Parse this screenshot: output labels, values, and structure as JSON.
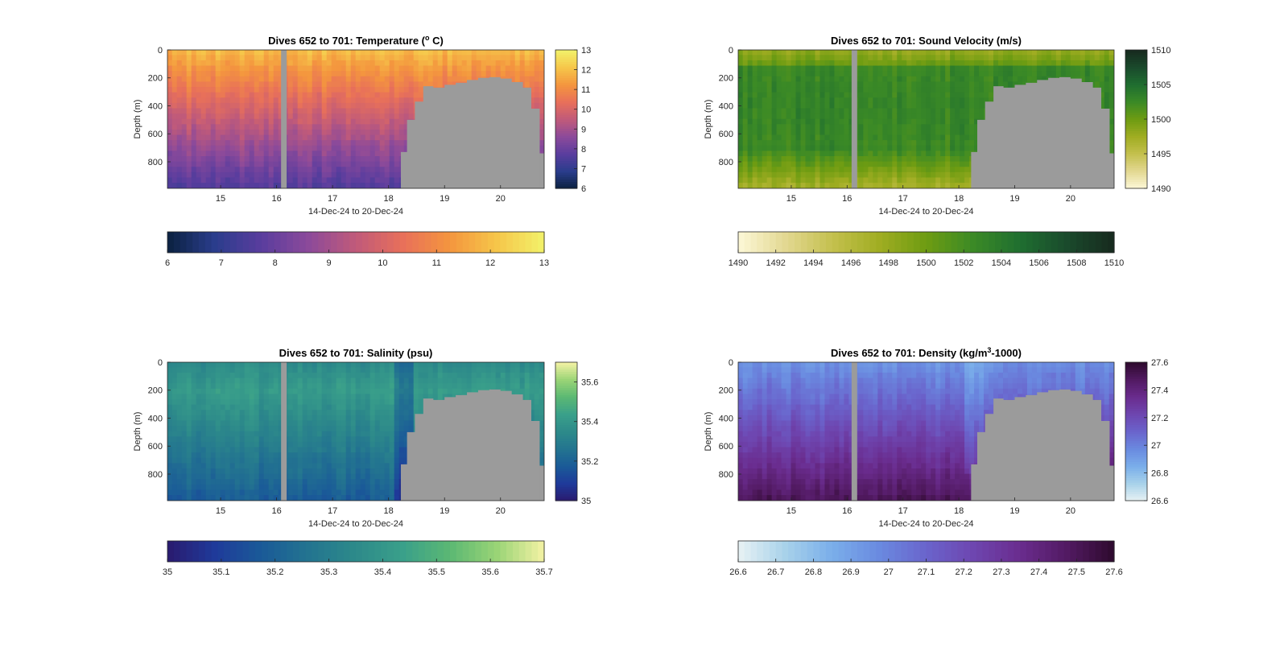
{
  "figure": {
    "panels": [
      {
        "id": "temperature",
        "title_prefix": "Dives 652 to 701: Temperature (",
        "title_sup": "o",
        "title_suffix": " C)",
        "colormap": [
          "#0b2140",
          "#2a3d8c",
          "#5a3d9e",
          "#8c4a9a",
          "#c05a7a",
          "#e8705a",
          "#f4963e",
          "#f6c64a",
          "#f2f26a"
        ]
      },
      {
        "id": "sound-velocity",
        "title_prefix": "Dives 652 to 701: Sound Velocity (m/s)",
        "title_sup": "",
        "title_suffix": "",
        "colormap": [
          "#fdf8d8",
          "#e3d892",
          "#c4c04e",
          "#a0ad22",
          "#6e9c12",
          "#3b8a26",
          "#1f6e30",
          "#1a4a2c",
          "#172a1e"
        ]
      },
      {
        "id": "salinity",
        "title_prefix": "Dives 652 to 701: Salinity (psu)",
        "title_sup": "",
        "title_suffix": "",
        "colormap": [
          "#2a1a6e",
          "#1f3a9a",
          "#1a5a98",
          "#237490",
          "#2d8a8a",
          "#3aa08a",
          "#5bb873",
          "#9ad476",
          "#f4f2a4"
        ]
      },
      {
        "id": "density",
        "title_prefix": "Dives 652 to 701: Density (kg/m",
        "title_sup": "3",
        "title_suffix": "-1000)",
        "colormap": [
          "#e8f2f4",
          "#a8d2ea",
          "#7aaeea",
          "#6a8ae0",
          "#6a64cc",
          "#6e46b0",
          "#6a2c8e",
          "#521a62",
          "#2e0a2e"
        ]
      }
    ]
  },
  "chart_data": [
    {
      "type": "heatmap",
      "title": "Dives 652 to 701: Temperature (o C)",
      "xlabel": "14-Dec-24 to 20-Dec-24",
      "ylabel": "Depth (m)",
      "xlim": [
        14.05,
        20.78
      ],
      "ylim": [
        990,
        0
      ],
      "xticks": [
        15,
        16,
        17,
        18,
        19,
        20
      ],
      "yticks": [
        0,
        200,
        400,
        600,
        800
      ],
      "colorbar_label": "",
      "clim": [
        6,
        13
      ],
      "colorbar_right_ticks": [
        6,
        7,
        8,
        9,
        10,
        11,
        12,
        13
      ],
      "colorbar_bottom_ticks": [
        6,
        7,
        8,
        9,
        10,
        11,
        12,
        13
      ],
      "gap_day": [
        16.08,
        16.18
      ],
      "bottom_depth_profile": {
        "days": [
          18.22,
          18.33,
          18.47,
          18.62,
          18.8,
          19.0,
          19.2,
          19.4,
          19.6,
          19.8,
          20.0,
          20.2,
          20.4,
          20.55,
          20.7
        ],
        "depth_m": [
          730,
          500,
          370,
          260,
          270,
          250,
          235,
          215,
          200,
          195,
          205,
          230,
          270,
          420,
          740
        ]
      },
      "surface_value": 12.0,
      "deep_value": 7.6
    },
    {
      "type": "heatmap",
      "title": "Dives 652 to 701: Sound Velocity (m/s)",
      "xlabel": "14-Dec-24 to 20-Dec-24",
      "ylabel": "Depth (m)",
      "xlim": [
        14.05,
        20.78
      ],
      "ylim": [
        990,
        0
      ],
      "xticks": [
        15,
        16,
        17,
        18,
        19,
        20
      ],
      "yticks": [
        0,
        200,
        400,
        600,
        800
      ],
      "clim": [
        1490,
        1510
      ],
      "colorbar_right_ticks": [
        1490,
        1495,
        1500,
        1505,
        1510
      ],
      "colorbar_bottom_ticks": [
        1490,
        1492,
        1494,
        1496,
        1498,
        1500,
        1502,
        1504,
        1506,
        1508,
        1510
      ],
      "gap_day": [
        16.08,
        16.18
      ],
      "bottom_depth_profile": {
        "days": [
          18.22,
          18.33,
          18.47,
          18.62,
          18.8,
          19.0,
          19.2,
          19.4,
          19.6,
          19.8,
          20.0,
          20.2,
          20.4,
          20.55,
          20.7
        ],
        "depth_m": [
          730,
          500,
          370,
          260,
          270,
          250,
          235,
          215,
          200,
          195,
          205,
          230,
          270,
          420,
          740
        ]
      },
      "surface_value": 1498.0,
      "mid_value": 1503.0,
      "deep_value": 1497.0
    },
    {
      "type": "heatmap",
      "title": "Dives 652 to 701: Salinity (psu)",
      "xlabel": "14-Dec-24 to 20-Dec-24",
      "ylabel": "Depth (m)",
      "xlim": [
        14.05,
        20.78
      ],
      "ylim": [
        990,
        0
      ],
      "xticks": [
        15,
        16,
        17,
        18,
        19,
        20
      ],
      "yticks": [
        0,
        200,
        400,
        600,
        800
      ],
      "clim": [
        35,
        35.7
      ],
      "colorbar_right_ticks": [
        35,
        35.2,
        35.4,
        35.6
      ],
      "colorbar_bottom_ticks": [
        35,
        35.1,
        35.2,
        35.3,
        35.4,
        35.5,
        35.6,
        35.7
      ],
      "gap_day": [
        16.08,
        16.18
      ],
      "bottom_depth_profile": {
        "days": [
          18.22,
          18.33,
          18.47,
          18.62,
          18.8,
          19.0,
          19.2,
          19.4,
          19.6,
          19.8,
          20.0,
          20.2,
          20.4,
          20.55,
          20.7
        ],
        "depth_m": [
          730,
          500,
          370,
          260,
          270,
          250,
          235,
          215,
          200,
          195,
          205,
          230,
          270,
          420,
          740
        ]
      },
      "surface_value": 35.35,
      "mid_value": 35.42,
      "deep_value": 35.18
    },
    {
      "type": "heatmap",
      "title": "Dives 652 to 701: Density (kg/m3-1000)",
      "xlabel": "14-Dec-24 to 20-Dec-24",
      "ylabel": "Depth (m)",
      "xlim": [
        14.05,
        20.78
      ],
      "ylim": [
        990,
        0
      ],
      "xticks": [
        15,
        16,
        17,
        18,
        19,
        20
      ],
      "yticks": [
        0,
        200,
        400,
        600,
        800
      ],
      "clim": [
        26.6,
        27.6
      ],
      "colorbar_right_ticks": [
        26.6,
        26.8,
        27,
        27.2,
        27.4,
        27.6
      ],
      "colorbar_bottom_ticks": [
        26.6,
        26.7,
        26.8,
        26.9,
        27,
        27.1,
        27.2,
        27.3,
        27.4,
        27.5,
        27.6
      ],
      "gap_day": [
        16.08,
        16.18
      ],
      "bottom_depth_profile": {
        "days": [
          18.22,
          18.33,
          18.47,
          18.62,
          18.8,
          19.0,
          19.2,
          19.4,
          19.6,
          19.8,
          20.0,
          20.2,
          20.4,
          20.55,
          20.7
        ],
        "depth_m": [
          730,
          500,
          370,
          260,
          270,
          250,
          235,
          215,
          200,
          195,
          205,
          230,
          270,
          420,
          740
        ]
      },
      "surface_value": 26.95,
      "deep_value": 27.5
    }
  ]
}
